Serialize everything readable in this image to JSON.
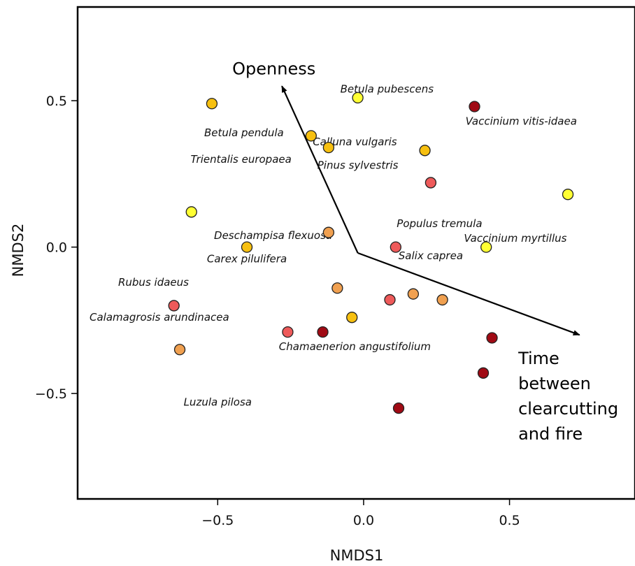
{
  "chart_data": {
    "type": "scatter",
    "xlabel": "NMDS1",
    "ylabel": "NMDS2",
    "xlim": [
      -0.98,
      0.93
    ],
    "ylim": [
      -0.86,
      0.82
    ],
    "x_ticks": [
      {
        "value": -0.5,
        "label": "−0.5"
      },
      {
        "value": 0.0,
        "label": "0.0"
      },
      {
        "value": 0.5,
        "label": "0.5"
      }
    ],
    "y_ticks": [
      {
        "value": 0.5,
        "label": "0.5"
      },
      {
        "value": 0.0,
        "label": "0.0"
      },
      {
        "value": -0.5,
        "label": "−0.5"
      }
    ],
    "grid": false,
    "colors": {
      "yellow": "#ffff33",
      "gold": "#f7c010",
      "orange": "#f0a050",
      "salmon": "#ee5a5a",
      "darkred": "#a00a14"
    },
    "points": [
      {
        "x": -0.02,
        "y": 0.51,
        "color": "yellow"
      },
      {
        "x": -0.52,
        "y": 0.49,
        "color": "gold"
      },
      {
        "x": -0.18,
        "y": 0.38,
        "color": "gold"
      },
      {
        "x": -0.12,
        "y": 0.34,
        "color": "gold"
      },
      {
        "x": 0.38,
        "y": 0.48,
        "color": "darkred"
      },
      {
        "x": 0.21,
        "y": 0.33,
        "color": "gold"
      },
      {
        "x": 0.23,
        "y": 0.22,
        "color": "salmon"
      },
      {
        "x": 0.7,
        "y": 0.18,
        "color": "yellow"
      },
      {
        "x": -0.59,
        "y": 0.12,
        "color": "yellow"
      },
      {
        "x": -0.12,
        "y": 0.05,
        "color": "orange"
      },
      {
        "x": -0.4,
        "y": 0.0,
        "color": "gold"
      },
      {
        "x": 0.11,
        "y": 0.0,
        "color": "salmon"
      },
      {
        "x": 0.42,
        "y": 0.0,
        "color": "yellow"
      },
      {
        "x": -0.09,
        "y": -0.14,
        "color": "orange"
      },
      {
        "x": 0.09,
        "y": -0.18,
        "color": "salmon"
      },
      {
        "x": 0.17,
        "y": -0.16,
        "color": "orange"
      },
      {
        "x": 0.27,
        "y": -0.18,
        "color": "orange"
      },
      {
        "x": -0.65,
        "y": -0.2,
        "color": "salmon"
      },
      {
        "x": -0.04,
        "y": -0.24,
        "color": "gold"
      },
      {
        "x": -0.26,
        "y": -0.29,
        "color": "salmon"
      },
      {
        "x": -0.14,
        "y": -0.29,
        "color": "darkred"
      },
      {
        "x": 0.44,
        "y": -0.31,
        "color": "darkred"
      },
      {
        "x": -0.63,
        "y": -0.35,
        "color": "orange"
      },
      {
        "x": 0.41,
        "y": -0.43,
        "color": "darkred"
      },
      {
        "x": 0.12,
        "y": -0.55,
        "color": "darkred"
      }
    ],
    "species_labels": [
      {
        "text": "Betula pubescens",
        "x": 0.08,
        "y": 0.54
      },
      {
        "text": "Vaccinium vitis-idaea",
        "x": 0.54,
        "y": 0.43
      },
      {
        "text": "Betula pendula",
        "x": -0.41,
        "y": 0.39
      },
      {
        "text": "Calluna vulgaris",
        "x": -0.03,
        "y": 0.36
      },
      {
        "text": "Trientalis europaea",
        "x": -0.42,
        "y": 0.3
      },
      {
        "text": "Pinus sylvestris",
        "x": -0.02,
        "y": 0.28
      },
      {
        "text": "Populus tremula",
        "x": 0.26,
        "y": 0.08
      },
      {
        "text": "Deschampisa flexuosa",
        "x": -0.31,
        "y": 0.04
      },
      {
        "text": "Vaccinium myrtillus",
        "x": 0.52,
        "y": 0.03
      },
      {
        "text": "Carex pilulifera",
        "x": -0.4,
        "y": -0.04
      },
      {
        "text": "Salix caprea",
        "x": 0.23,
        "y": -0.03
      },
      {
        "text": "Rubus idaeus",
        "x": -0.72,
        "y": -0.12
      },
      {
        "text": "Calamagrosis arundinacea",
        "x": -0.7,
        "y": -0.24
      },
      {
        "text": "Chamaenerion angustifolium",
        "x": -0.03,
        "y": -0.34
      },
      {
        "text": "Luzula pilosa",
        "x": -0.5,
        "y": -0.53
      }
    ],
    "vectors": [
      {
        "name": "Openness",
        "from": [
          -0.02,
          -0.02
        ],
        "to": [
          -0.28,
          0.55
        ]
      },
      {
        "name": "Time between clearcutting and fire",
        "from": [
          -0.02,
          -0.02
        ],
        "to": [
          0.74,
          -0.3
        ]
      }
    ],
    "vector_labels": {
      "openness": {
        "lines": [
          "Openness"
        ],
        "x": -0.45,
        "y": 0.59,
        "anchor": "start"
      },
      "time": {
        "lines": [
          "Time",
          "between",
          "clearcutting",
          "and fire"
        ],
        "x": 0.53,
        "y": -0.4,
        "anchor": "start"
      }
    }
  }
}
